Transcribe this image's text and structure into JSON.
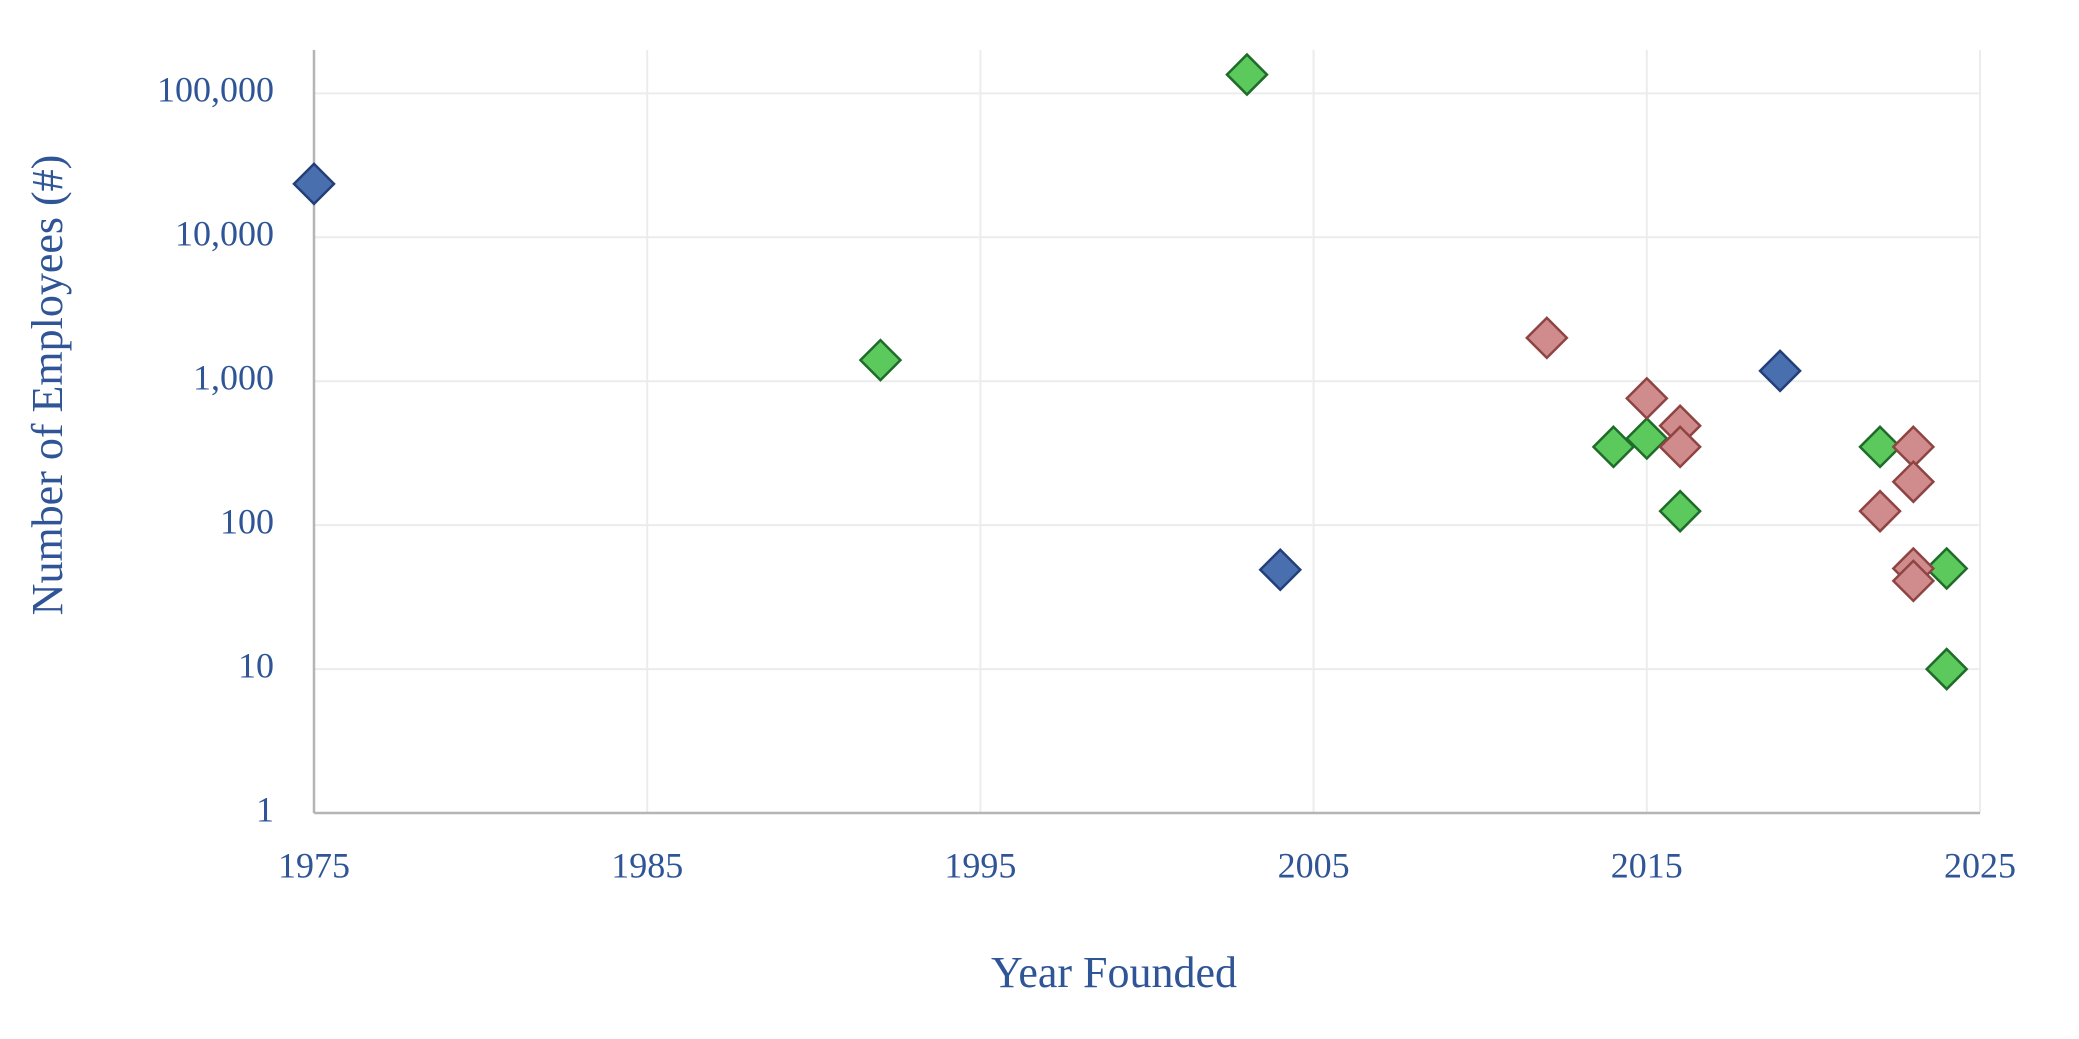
{
  "chart_data": {
    "type": "scatter",
    "x_label": "Year Founded",
    "y_label": "Number of Employees (#)",
    "xlim": [
      1975,
      2025
    ],
    "xticks": [
      1975,
      1985,
      1995,
      2005,
      2015,
      2025
    ],
    "ylim": [
      1,
      200000
    ],
    "log_y": true,
    "yticks": [
      1,
      10,
      100,
      {
        "value": 1000,
        "label": "1,000"
      },
      {
        "value": 10000,
        "label": "10,000"
      },
      {
        "value": 100000,
        "label": "100,000"
      }
    ],
    "grid": true,
    "marker": "diamond",
    "series": [
      {
        "color": "#4a6fae",
        "edge": "#233f7a",
        "x": [
          1975,
          2004,
          2019
        ],
        "values": [
          23500,
          49,
          1180
        ]
      },
      {
        "color": "#5cc95c",
        "edge": "#1f6b2a",
        "x": [
          2003,
          1992,
          2014,
          2015,
          2016,
          2022,
          2024,
          2024
        ],
        "values": [
          135000,
          1400,
          350,
          400,
          125,
          350,
          50,
          10
        ]
      },
      {
        "color": "#d08c8c",
        "edge": "#8f4444",
        "x": [
          2012,
          2015,
          2016,
          2016,
          2022,
          2023,
          2023,
          2023,
          2023
        ],
        "values": [
          2000,
          760,
          490,
          350,
          125,
          350,
          200,
          50,
          41
        ]
      }
    ]
  }
}
